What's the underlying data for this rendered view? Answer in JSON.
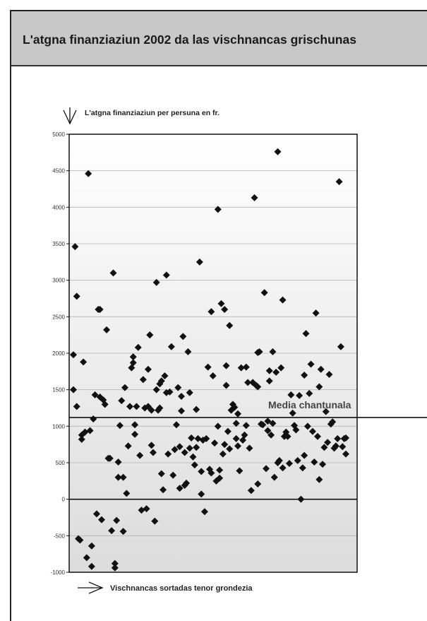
{
  "title": "L'atgna finanziaziun 2002 da las vischnancas grischunas",
  "chart_data": {
    "type": "scatter",
    "ylabel": "L'atgna finanziaziun per persuna en fr.",
    "xlabel": "Vischnancas sortadas tenor grondezia",
    "ylim": [
      -1000,
      5000
    ],
    "yticks": [
      -1000,
      -500,
      0,
      500,
      1000,
      1500,
      2000,
      2500,
      3000,
      3500,
      4000,
      4500,
      5000
    ],
    "grid": true,
    "annotations": [
      {
        "text": "Media chantunala",
        "y": 1120
      }
    ],
    "series": [
      {
        "points": [
          [
            1,
            1980
          ],
          [
            1,
            1500
          ],
          [
            2,
            3460
          ],
          [
            3,
            2780
          ],
          [
            3,
            1270
          ],
          [
            4,
            -540
          ],
          [
            5,
            -560
          ],
          [
            6,
            880
          ],
          [
            6,
            820
          ],
          [
            7,
            1880
          ],
          [
            8,
            920
          ],
          [
            9,
            -800
          ],
          [
            10,
            4460
          ],
          [
            11,
            940
          ],
          [
            12,
            -920
          ],
          [
            12,
            -640
          ],
          [
            13,
            1100
          ],
          [
            14,
            1430
          ],
          [
            15,
            -200
          ],
          [
            16,
            2600
          ],
          [
            17,
            2600
          ],
          [
            17,
            1400
          ],
          [
            18,
            -280
          ],
          [
            19,
            1360
          ],
          [
            20,
            1300
          ],
          [
            21,
            2320
          ],
          [
            22,
            560
          ],
          [
            23,
            560
          ],
          [
            24,
            -430
          ],
          [
            25,
            3100
          ],
          [
            26,
            -940
          ],
          [
            26,
            -880
          ],
          [
            27,
            -290
          ],
          [
            28,
            510
          ],
          [
            28,
            300
          ],
          [
            29,
            1010
          ],
          [
            30,
            1350
          ],
          [
            31,
            -440
          ],
          [
            31,
            300
          ],
          [
            32,
            1530
          ],
          [
            33,
            80
          ],
          [
            34,
            730
          ],
          [
            35,
            1270
          ],
          [
            36,
            1800
          ],
          [
            37,
            1950
          ],
          [
            37,
            1870
          ],
          [
            38,
            1020
          ],
          [
            38,
            890
          ],
          [
            39,
            1270
          ],
          [
            40,
            2080
          ],
          [
            41,
            600
          ],
          [
            42,
            -150
          ],
          [
            43,
            1640
          ],
          [
            44,
            1250
          ],
          [
            45,
            -130
          ],
          [
            46,
            1780
          ],
          [
            46,
            1270
          ],
          [
            47,
            2250
          ],
          [
            47,
            2250
          ],
          [
            48,
            740
          ],
          [
            48,
            1220
          ],
          [
            49,
            640
          ],
          [
            50,
            -300
          ],
          [
            51,
            1500
          ],
          [
            51,
            2970
          ],
          [
            52,
            1220
          ],
          [
            53,
            1250
          ],
          [
            53,
            1580
          ],
          [
            54,
            350
          ],
          [
            54,
            1620
          ],
          [
            55,
            130
          ],
          [
            56,
            1690
          ],
          [
            57,
            3070
          ],
          [
            57,
            1460
          ],
          [
            58,
            620
          ],
          [
            59,
            1470
          ],
          [
            60,
            2090
          ],
          [
            61,
            330
          ],
          [
            62,
            680
          ],
          [
            63,
            1020
          ],
          [
            64,
            1530
          ],
          [
            65,
            720
          ],
          [
            65,
            150
          ],
          [
            66,
            1410
          ],
          [
            66,
            1210
          ],
          [
            67,
            2230
          ],
          [
            68,
            190
          ],
          [
            68,
            640
          ],
          [
            69,
            220
          ],
          [
            70,
            2020
          ],
          [
            71,
            1460
          ],
          [
            71,
            700
          ],
          [
            72,
            840
          ],
          [
            73,
            580
          ],
          [
            74,
            470
          ],
          [
            75,
            1230
          ],
          [
            75,
            710
          ],
          [
            76,
            830
          ],
          [
            77,
            3250
          ],
          [
            78,
            70
          ],
          [
            78,
            380
          ],
          [
            79,
            810
          ],
          [
            80,
            -170
          ],
          [
            81,
            830
          ],
          [
            82,
            1810
          ],
          [
            83,
            410
          ],
          [
            84,
            360
          ],
          [
            84,
            2570
          ],
          [
            85,
            1690
          ],
          [
            86,
            770
          ],
          [
            87,
            250
          ],
          [
            88,
            3970
          ],
          [
            88,
            1000
          ],
          [
            89,
            290
          ],
          [
            89,
            400
          ],
          [
            90,
            2680
          ],
          [
            91,
            620
          ],
          [
            92,
            2600
          ],
          [
            92,
            750
          ],
          [
            93,
            1560
          ],
          [
            93,
            1830
          ],
          [
            94,
            930
          ],
          [
            95,
            2380
          ],
          [
            95,
            690
          ],
          [
            96,
            1220
          ],
          [
            97,
            1300
          ],
          [
            98,
            1260
          ],
          [
            99,
            1040
          ],
          [
            99,
            830
          ],
          [
            100,
            1170
          ],
          [
            100,
            730
          ],
          [
            101,
            390
          ],
          [
            102,
            1800
          ],
          [
            103,
            810
          ],
          [
            104,
            880
          ],
          [
            105,
            1810
          ],
          [
            105,
            1010
          ],
          [
            106,
            1600
          ],
          [
            107,
            700
          ],
          [
            108,
            120
          ],
          [
            109,
            1600
          ],
          [
            110,
            4130
          ],
          [
            111,
            1560
          ],
          [
            112,
            1540
          ],
          [
            112,
            2010
          ],
          [
            112,
            210
          ],
          [
            113,
            2020
          ],
          [
            114,
            1030
          ],
          [
            115,
            1020
          ],
          [
            116,
            2830
          ],
          [
            117,
            420
          ],
          [
            118,
            1070
          ],
          [
            118,
            940
          ],
          [
            119,
            1760
          ],
          [
            119,
            1620
          ],
          [
            120,
            880
          ],
          [
            121,
            2020
          ],
          [
            121,
            1040
          ],
          [
            122,
            300
          ],
          [
            123,
            1740
          ],
          [
            124,
            4760
          ],
          [
            124,
            500
          ],
          [
            125,
            530
          ],
          [
            126,
            1800
          ],
          [
            127,
            2730
          ],
          [
            127,
            430
          ],
          [
            128,
            860
          ],
          [
            129,
            920
          ],
          [
            130,
            860
          ],
          [
            131,
            490
          ],
          [
            132,
            1430
          ],
          [
            133,
            1180
          ],
          [
            134,
            1010
          ],
          [
            135,
            950
          ],
          [
            136,
            530
          ],
          [
            137,
            1420
          ],
          [
            138,
            0
          ],
          [
            139,
            430
          ],
          [
            140,
            1700
          ],
          [
            140,
            600
          ],
          [
            141,
            2270
          ],
          [
            142,
            1000
          ],
          [
            143,
            1450
          ],
          [
            144,
            1850
          ],
          [
            145,
            930
          ],
          [
            146,
            510
          ],
          [
            147,
            2550
          ],
          [
            148,
            860
          ],
          [
            149,
            1540
          ],
          [
            149,
            270
          ],
          [
            150,
            1780
          ],
          [
            151,
            480
          ],
          [
            152,
            710
          ],
          [
            153,
            1200
          ],
          [
            154,
            780
          ],
          [
            155,
            1710
          ],
          [
            156,
            1030
          ],
          [
            157,
            1060
          ],
          [
            158,
            700
          ],
          [
            159,
            730
          ],
          [
            160,
            830
          ],
          [
            161,
            4350
          ],
          [
            162,
            2090
          ],
          [
            163,
            720
          ],
          [
            164,
            830
          ],
          [
            165,
            840
          ],
          [
            165,
            620
          ]
        ]
      }
    ]
  }
}
